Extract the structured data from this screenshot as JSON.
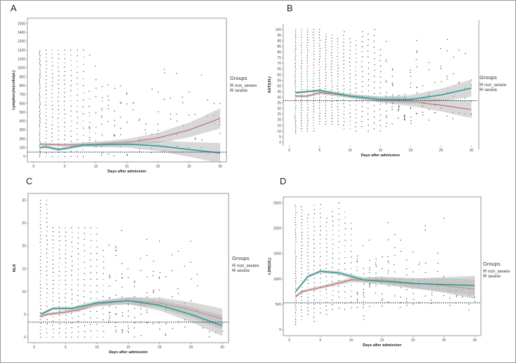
{
  "legend": {
    "title": "Groups",
    "items": [
      "non_severe",
      "severe"
    ]
  },
  "colors": {
    "non_severe": "#c9696f",
    "severe": "#2a9d96",
    "points": "#333333",
    "band": "#b8b8b8",
    "threshold": "#1a3550"
  },
  "chart_data": [
    {
      "panel": "A",
      "type": "scatter",
      "xlabel": "Days after admission",
      "ylabel": "Lymphocyte(cells/μL)",
      "xlim": [
        -1,
        31
      ],
      "ylim": [
        -60,
        1560
      ],
      "xticks": [
        0,
        5,
        10,
        15,
        20,
        25,
        30
      ],
      "yticks": [
        0,
        100,
        200,
        300,
        400,
        500,
        600,
        700,
        800,
        900,
        1000,
        1100,
        1200,
        1300,
        1400,
        1500
      ],
      "threshold": 50,
      "series": [
        {
          "name": "non_severe",
          "x": [
            1,
            5,
            10,
            15,
            20,
            25,
            30
          ],
          "y": [
            140,
            130,
            140,
            160,
            210,
            300,
            430
          ]
        },
        {
          "name": "severe",
          "x": [
            1,
            2,
            4,
            5,
            8,
            15,
            20,
            25,
            30
          ],
          "y": [
            100,
            110,
            80,
            90,
            130,
            140,
            120,
            80,
            40
          ]
        }
      ],
      "scatter_columns": [
        [
          1,
          0,
          1200,
          60
        ],
        [
          2,
          0,
          1200,
          30
        ],
        [
          3,
          0,
          1200,
          28
        ],
        [
          4,
          0,
          1200,
          26
        ],
        [
          5,
          0,
          1200,
          26
        ],
        [
          6,
          0,
          1200,
          22
        ],
        [
          7,
          0,
          1200,
          20
        ],
        [
          8,
          0,
          1200,
          16
        ],
        [
          9,
          0,
          1180,
          14
        ],
        [
          10,
          0,
          1200,
          12
        ],
        [
          11,
          0,
          1180,
          12
        ],
        [
          12,
          0,
          1100,
          8
        ],
        [
          13,
          0,
          1150,
          8
        ],
        [
          14,
          0,
          1200,
          7
        ],
        [
          15,
          0,
          1150,
          7
        ],
        [
          16,
          0,
          1050,
          4
        ],
        [
          17,
          0,
          1150,
          6
        ],
        [
          18,
          0,
          600,
          3
        ],
        [
          19,
          0,
          1150,
          4
        ],
        [
          20,
          0,
          980,
          5
        ],
        [
          21,
          0,
          1150,
          4
        ],
        [
          22,
          0,
          940,
          4
        ],
        [
          23,
          0,
          1100,
          5
        ],
        [
          24,
          0,
          830,
          4
        ],
        [
          25,
          0,
          740,
          4
        ],
        [
          26,
          0,
          830,
          3
        ],
        [
          27,
          0,
          1100,
          3
        ],
        [
          28,
          0,
          1080,
          3
        ],
        [
          29,
          0,
          1100,
          3
        ],
        [
          30,
          0,
          830,
          4
        ]
      ]
    },
    {
      "panel": "B",
      "type": "scatter",
      "xlabel": "Days after admission",
      "ylabel": "AST(U/L)",
      "xlim": [
        -1,
        31
      ],
      "ylim": [
        -3,
        105
      ],
      "xticks": [
        0,
        5,
        10,
        15,
        20,
        25,
        30
      ],
      "yticks": [
        0,
        5,
        10,
        15,
        20,
        25,
        30,
        35,
        40,
        45,
        50,
        55,
        60,
        65,
        70,
        75,
        80,
        85,
        90,
        95,
        100
      ],
      "threshold": 37,
      "series": [
        {
          "name": "non_severe",
          "x": [
            1,
            3,
            5,
            10,
            15,
            20,
            25,
            30
          ],
          "y": [
            41,
            41,
            44,
            41,
            38,
            36,
            33,
            29
          ]
        },
        {
          "name": "severe",
          "x": [
            1,
            5,
            10,
            15,
            20,
            25,
            30
          ],
          "y": [
            44,
            46,
            41,
            38,
            38,
            42,
            48
          ]
        }
      ],
      "scatter_columns": [
        [
          1,
          8,
          100,
          50
        ],
        [
          2,
          10,
          100,
          40
        ],
        [
          3,
          10,
          100,
          40
        ],
        [
          4,
          10,
          100,
          38
        ],
        [
          5,
          16,
          100,
          36
        ],
        [
          6,
          16,
          96,
          34
        ],
        [
          7,
          16,
          95,
          32
        ],
        [
          8,
          16,
          92,
          30
        ],
        [
          9,
          12,
          98,
          28
        ],
        [
          10,
          12,
          92,
          24
        ],
        [
          11,
          10,
          90,
          22
        ],
        [
          12,
          14,
          98,
          20
        ],
        [
          13,
          10,
          96,
          18
        ],
        [
          14,
          12,
          100,
          18
        ],
        [
          15,
          10,
          82,
          16
        ],
        [
          16,
          14,
          90,
          14
        ],
        [
          17,
          16,
          80,
          14
        ],
        [
          18,
          18,
          70,
          12
        ],
        [
          19,
          18,
          74,
          12
        ],
        [
          20,
          16,
          96,
          10
        ],
        [
          21,
          20,
          95,
          10
        ],
        [
          22,
          16,
          58,
          8
        ],
        [
          23,
          18,
          74,
          8
        ],
        [
          24,
          18,
          54,
          6
        ],
        [
          25,
          18,
          90,
          6
        ],
        [
          26,
          16,
          96,
          6
        ],
        [
          27,
          20,
          90,
          5
        ],
        [
          28,
          20,
          86,
          4
        ],
        [
          29,
          22,
          86,
          4
        ],
        [
          30,
          22,
          64,
          5
        ]
      ]
    },
    {
      "panel": "C",
      "type": "scatter",
      "xlabel": "Days after admission",
      "ylabel": "NLR",
      "xlim": [
        -1,
        31
      ],
      "ylim": [
        -1.2,
        31.5
      ],
      "xticks": [
        0,
        5,
        10,
        15,
        20,
        25,
        30
      ],
      "yticks": [
        0,
        5,
        10,
        15,
        20,
        25,
        30
      ],
      "threshold": 3.3,
      "series": [
        {
          "name": "non_severe",
          "x": [
            1,
            2,
            5,
            7,
            10,
            15,
            20,
            25,
            30
          ],
          "y": [
            4.5,
            5,
            5.5,
            6,
            7.2,
            8,
            7.5,
            6,
            4
          ]
        },
        {
          "name": "severe",
          "x": [
            1,
            3,
            6,
            10,
            15,
            20,
            25,
            30
          ],
          "y": [
            5,
            6.3,
            6.3,
            7.5,
            8,
            7,
            5,
            2.5
          ]
        }
      ],
      "scatter_columns": [
        [
          1,
          0,
          30,
          40
        ],
        [
          2,
          0,
          30,
          32
        ],
        [
          3,
          0,
          24,
          28
        ],
        [
          4,
          0,
          24,
          26
        ],
        [
          5,
          0,
          24,
          26
        ],
        [
          6,
          0,
          24,
          24
        ],
        [
          7,
          0,
          24,
          22
        ],
        [
          8,
          0,
          24,
          20
        ],
        [
          9,
          0,
          24,
          18
        ],
        [
          10,
          0,
          24,
          18
        ],
        [
          11,
          0,
          19,
          16
        ],
        [
          12,
          0,
          24,
          14
        ],
        [
          13,
          0,
          24,
          14
        ],
        [
          14,
          0,
          24,
          12
        ],
        [
          15,
          0,
          19,
          12
        ],
        [
          16,
          0,
          19,
          10
        ],
        [
          17,
          0,
          19,
          10
        ],
        [
          18,
          0,
          24,
          9
        ],
        [
          19,
          0,
          24,
          8
        ],
        [
          20,
          0,
          24,
          8
        ],
        [
          21,
          0,
          24,
          7
        ],
        [
          22,
          0,
          19,
          6
        ],
        [
          23,
          0,
          19,
          6
        ],
        [
          24,
          0,
          19,
          5
        ],
        [
          25,
          0,
          24,
          5
        ],
        [
          26,
          0,
          21,
          4
        ],
        [
          27,
          0,
          8,
          3
        ],
        [
          28,
          0,
          8,
          3
        ],
        [
          29,
          0,
          9,
          3
        ],
        [
          30,
          0,
          8,
          3
        ]
      ]
    },
    {
      "panel": "D",
      "type": "scatter",
      "xlabel": "Days after admission",
      "ylabel": "LDH(U/L)",
      "xlim": [
        -1,
        31
      ],
      "ylim": [
        -120,
        2620
      ],
      "xticks": [
        0,
        5,
        10,
        15,
        20,
        25,
        30
      ],
      "yticks": [
        0,
        500,
        1000,
        1500,
        2000,
        2500
      ],
      "threshold": 530,
      "series": [
        {
          "name": "non_severe",
          "x": [
            1,
            2,
            5,
            10,
            15,
            20,
            25,
            30
          ],
          "y": [
            650,
            750,
            830,
            980,
            980,
            920,
            870,
            800
          ]
        },
        {
          "name": "severe",
          "x": [
            1,
            3,
            5,
            8,
            12,
            20,
            30
          ],
          "y": [
            750,
            1050,
            1150,
            1120,
            980,
            910,
            870
          ]
        }
      ],
      "scatter_columns": [
        [
          1,
          100,
          2450,
          50
        ],
        [
          2,
          200,
          2430,
          36
        ],
        [
          3,
          300,
          2270,
          30
        ],
        [
          4,
          160,
          2460,
          28
        ],
        [
          5,
          330,
          2470,
          26
        ],
        [
          6,
          300,
          2200,
          24
        ],
        [
          7,
          400,
          2330,
          22
        ],
        [
          8,
          420,
          2500,
          20
        ],
        [
          9,
          400,
          2330,
          18
        ],
        [
          10,
          430,
          2100,
          16
        ],
        [
          11,
          430,
          2250,
          14
        ],
        [
          12,
          150,
          1950,
          14
        ],
        [
          13,
          450,
          2050,
          12
        ],
        [
          14,
          450,
          1800,
          10
        ],
        [
          15,
          430,
          1800,
          10
        ],
        [
          16,
          430,
          2130,
          9
        ],
        [
          17,
          430,
          2170,
          9
        ],
        [
          18,
          440,
          2000,
          8
        ],
        [
          19,
          420,
          2100,
          8
        ],
        [
          20,
          440,
          1820,
          7
        ],
        [
          21,
          400,
          1850,
          6
        ],
        [
          22,
          440,
          2150,
          6
        ],
        [
          23,
          460,
          1350,
          5
        ],
        [
          24,
          380,
          2020,
          5
        ],
        [
          25,
          480,
          2230,
          5
        ],
        [
          26,
          400,
          1580,
          4
        ],
        [
          27,
          500,
          1070,
          4
        ],
        [
          28,
          400,
          1120,
          3
        ],
        [
          29,
          370,
          1000,
          4
        ],
        [
          30,
          500,
          1000,
          3
        ]
      ]
    }
  ]
}
